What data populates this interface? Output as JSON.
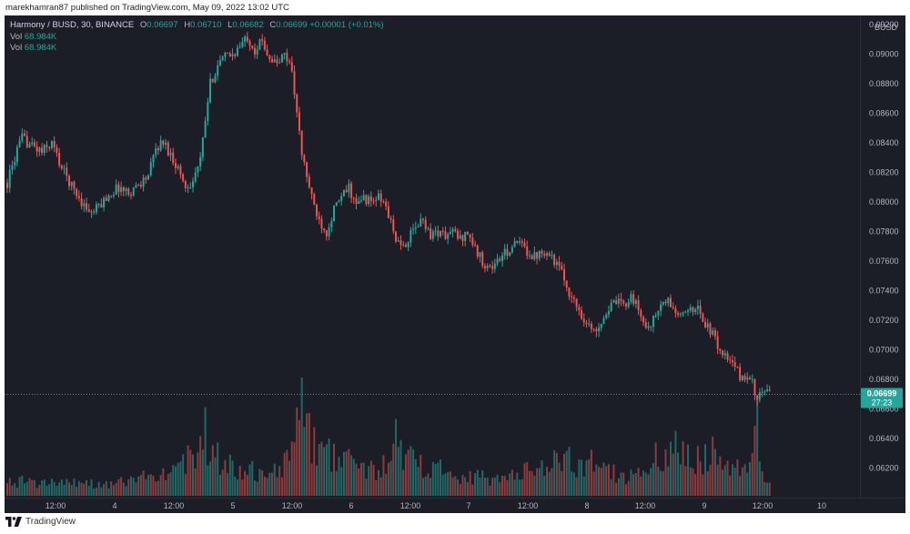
{
  "header": {
    "publisher_line": "marekhamran87 published on TradingView.com, May 09, 2022 13:02 UTC"
  },
  "legend": {
    "symbol": "Harmony / BUSD, 30, BINANCE",
    "o_label": "O",
    "o_value": "0.06697",
    "h_label": "H",
    "h_value": "0.06710",
    "l_label": "L",
    "l_value": "0.06682",
    "c_label": "C",
    "c_value": "0.06699",
    "change": "+0.00001 (+0.01%)",
    "vol_rows": [
      {
        "label": "Vol",
        "value": "68.984K"
      },
      {
        "label": "Vol",
        "value": "68.984K"
      }
    ]
  },
  "colors": {
    "background": "#1b1d27",
    "up": "#26a69a",
    "down": "#ef5350",
    "last_price_tag": "#26a69a"
  },
  "chart_data": {
    "type": "candlestick",
    "quote_currency": "BUSD",
    "interval": "30",
    "y_axis": {
      "range": [
        0.06,
        0.0925
      ],
      "tick_labels": [
        "0.09200",
        "0.09000",
        "0.08800",
        "0.08600",
        "0.08400",
        "0.08200",
        "0.08000",
        "0.07800",
        "0.07600",
        "0.07400",
        "0.07200",
        "0.07000",
        "0.06800",
        "0.06600",
        "0.06400",
        "0.06200"
      ]
    },
    "x_axis": {
      "tick_labels": [
        "12:00",
        "4",
        "12:00",
        "5",
        "12:00",
        "6",
        "12:00",
        "7",
        "12:00",
        "8",
        "12:00",
        "9",
        "12:00",
        "10"
      ]
    },
    "last_price": {
      "value": "0.06699",
      "countdown": "27:23"
    },
    "price_path": [
      [
        0,
        0.0813
      ],
      [
        4,
        0.0835
      ],
      [
        6,
        0.0843
      ],
      [
        10,
        0.0838
      ],
      [
        14,
        0.0834
      ],
      [
        18,
        0.084
      ],
      [
        22,
        0.0823
      ],
      [
        27,
        0.0808
      ],
      [
        31,
        0.0798
      ],
      [
        34,
        0.0792
      ],
      [
        37,
        0.0797
      ],
      [
        41,
        0.0805
      ],
      [
        45,
        0.081
      ],
      [
        49,
        0.0806
      ],
      [
        53,
        0.0812
      ],
      [
        57,
        0.0818
      ],
      [
        60,
        0.0836
      ],
      [
        63,
        0.0841
      ],
      [
        66,
        0.0832
      ],
      [
        69,
        0.0823
      ],
      [
        72,
        0.081
      ],
      [
        75,
        0.0815
      ],
      [
        78,
        0.0828
      ],
      [
        80,
        0.0855
      ],
      [
        82,
        0.088
      ],
      [
        85,
        0.0893
      ],
      [
        88,
        0.0898
      ],
      [
        91,
        0.09
      ],
      [
        94,
        0.0905
      ],
      [
        97,
        0.0912
      ],
      [
        100,
        0.0903
      ],
      [
        103,
        0.0909
      ],
      [
        106,
        0.0898
      ],
      [
        109,
        0.0893
      ],
      [
        112,
        0.09
      ],
      [
        115,
        0.089
      ],
      [
        117,
        0.086
      ],
      [
        119,
        0.0832
      ],
      [
        121,
        0.0818
      ],
      [
        123,
        0.0802
      ],
      [
        126,
        0.0788
      ],
      [
        129,
        0.078
      ],
      [
        132,
        0.0795
      ],
      [
        135,
        0.0803
      ],
      [
        138,
        0.081
      ],
      [
        141,
        0.0797
      ],
      [
        144,
        0.0803
      ],
      [
        147,
        0.08
      ],
      [
        150,
        0.0803
      ],
      [
        153,
        0.0797
      ],
      [
        156,
        0.078
      ],
      [
        159,
        0.0768
      ],
      [
        162,
        0.0775
      ],
      [
        165,
        0.0783
      ],
      [
        168,
        0.0788
      ],
      [
        171,
        0.0778
      ],
      [
        174,
        0.078
      ],
      [
        177,
        0.0777
      ],
      [
        180,
        0.078
      ],
      [
        183,
        0.0775
      ],
      [
        186,
        0.078
      ],
      [
        189,
        0.0768
      ],
      [
        192,
        0.076
      ],
      [
        195,
        0.0755
      ],
      [
        198,
        0.076
      ],
      [
        201,
        0.0765
      ],
      [
        204,
        0.077
      ],
      [
        207,
        0.0772
      ],
      [
        210,
        0.0767
      ],
      [
        213,
        0.0763
      ],
      [
        216,
        0.0768
      ],
      [
        219,
        0.0765
      ],
      [
        222,
        0.0758
      ],
      [
        225,
        0.0748
      ],
      [
        228,
        0.0735
      ],
      [
        231,
        0.0727
      ],
      [
        234,
        0.0718
      ],
      [
        237,
        0.0712
      ],
      [
        240,
        0.072
      ],
      [
        243,
        0.0728
      ],
      [
        246,
        0.0732
      ],
      [
        249,
        0.073
      ],
      [
        252,
        0.0737
      ],
      [
        255,
        0.0727
      ],
      [
        258,
        0.0715
      ],
      [
        261,
        0.072
      ],
      [
        264,
        0.073
      ],
      [
        267,
        0.0733
      ],
      [
        270,
        0.0725
      ],
      [
        273,
        0.0722
      ],
      [
        276,
        0.073
      ],
      [
        279,
        0.0727
      ],
      [
        282,
        0.0718
      ],
      [
        285,
        0.071
      ],
      [
        288,
        0.07
      ],
      [
        291,
        0.0693
      ],
      [
        294,
        0.0688
      ],
      [
        297,
        0.068
      ],
      [
        300,
        0.0683
      ],
      [
        302,
        0.0672
      ],
      [
        303,
        0.0664
      ],
      [
        305,
        0.0672
      ],
      [
        307,
        0.067
      ],
      [
        308,
        0.067
      ]
    ],
    "volume_profile": [
      [
        0,
        0.2
      ],
      [
        40,
        0.15
      ],
      [
        65,
        0.3
      ],
      [
        80,
        0.75
      ],
      [
        85,
        0.45
      ],
      [
        95,
        0.35
      ],
      [
        110,
        0.3
      ],
      [
        119,
        1.0
      ],
      [
        122,
        0.7
      ],
      [
        130,
        0.55
      ],
      [
        150,
        0.3
      ],
      [
        157,
        0.65
      ],
      [
        165,
        0.45
      ],
      [
        180,
        0.3
      ],
      [
        200,
        0.2
      ],
      [
        225,
        0.5
      ],
      [
        235,
        0.4
      ],
      [
        250,
        0.25
      ],
      [
        262,
        0.45
      ],
      [
        270,
        0.55
      ],
      [
        285,
        0.5
      ],
      [
        300,
        0.45
      ],
      [
        303,
        0.85
      ],
      [
        306,
        0.3
      ],
      [
        308,
        0.15
      ]
    ]
  },
  "footer": {
    "brand": "TradingView"
  }
}
